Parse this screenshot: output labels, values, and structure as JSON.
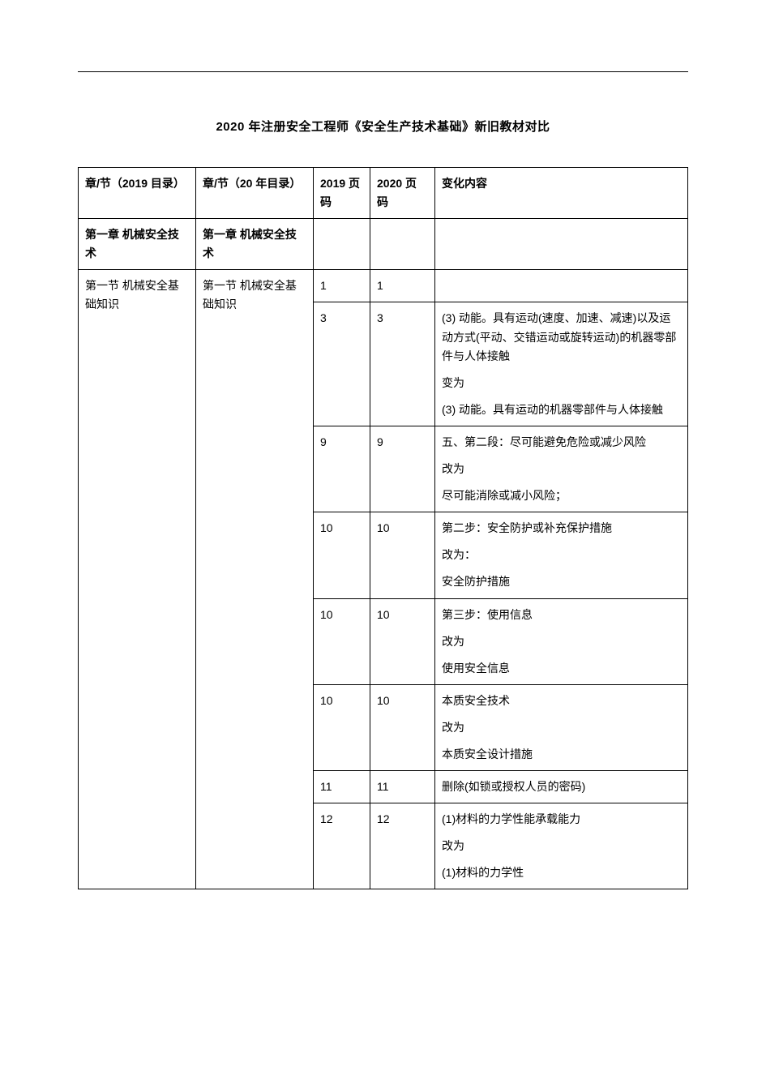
{
  "title": "2020 年注册安全工程师《安全生产技术基础》新旧教材对比",
  "headers": {
    "c1": "章/节（2019 目录）",
    "c2": "章/节（20 年目录）",
    "c3": "2019 页码",
    "c4": "2020 页码",
    "c5": "变化内容"
  },
  "chapter": {
    "c1": "第一章 机械安全技术",
    "c2": "第一章 机械安全技术"
  },
  "section": {
    "c1": "第一节 机械安全基础知识",
    "c2": "第一节 机械安全基础知识"
  },
  "rows": [
    {
      "p2019": "1",
      "p2020": "1",
      "paras": []
    },
    {
      "p2019": "3",
      "p2020": "3",
      "paras": [
        "(3) 动能。具有运动(速度、加速、减速)以及运动方式(平动、交错运动或旋转运动)的机器零部件与人体接触",
        "变为",
        "(3) 动能。具有运动的机器零部件与人体接触"
      ]
    },
    {
      "p2019": "9",
      "p2020": "9",
      "paras": [
        "五、第二段：尽可能避免危险或减少风险",
        "改为",
        "尽可能消除或减小风险；"
      ]
    },
    {
      "p2019": "10",
      "p2020": "10",
      "paras": [
        "第二步：安全防护或补充保护措施",
        "改为：",
        "安全防护措施"
      ]
    },
    {
      "p2019": "10",
      "p2020": "10",
      "paras": [
        "第三步：使用信息",
        "改为",
        "使用安全信息"
      ]
    },
    {
      "p2019": "10",
      "p2020": "10",
      "paras": [
        "本质安全技术",
        "改为",
        "本质安全设计措施"
      ]
    },
    {
      "p2019": "11",
      "p2020": "11",
      "paras": [
        "删除(如锁或授权人员的密码)"
      ]
    },
    {
      "p2019": "12",
      "p2020": "12",
      "paras": [
        "(1)材料的力学性能承载能力",
        "改为",
        "(1)材料的力学性"
      ]
    }
  ]
}
